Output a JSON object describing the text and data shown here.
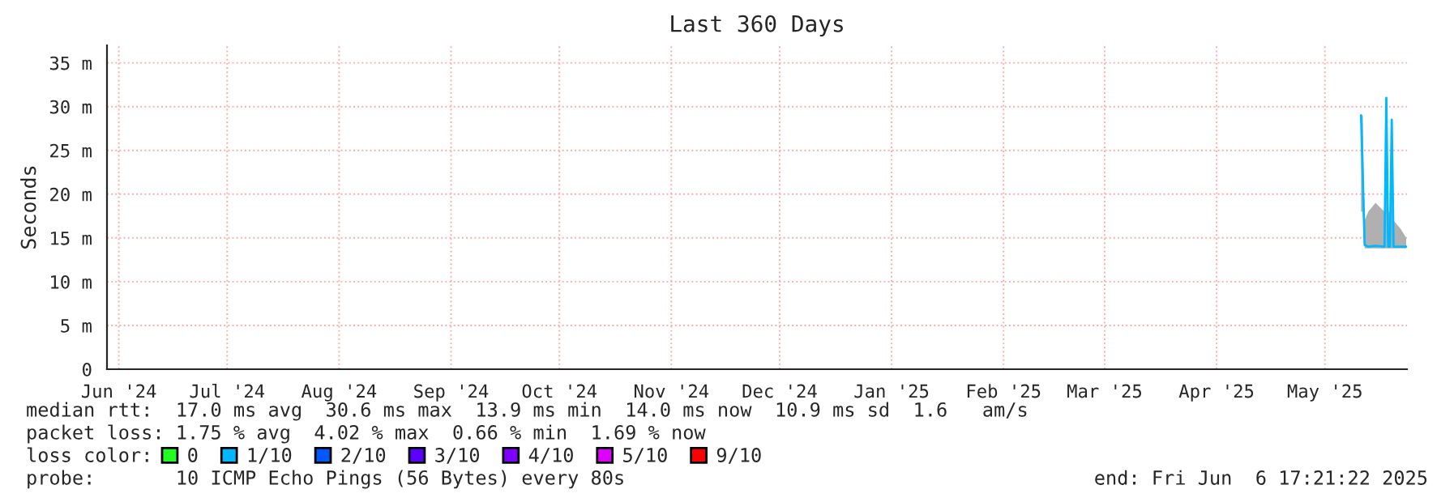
{
  "chart_data": {
    "type": "line",
    "title": "Last 360 Days",
    "ylabel": "Seconds",
    "xlim": [
      "2024-06-11T17:21",
      "2025-06-06T17:21"
    ],
    "xticks": [
      {
        "value": "2024-06-15",
        "label": "Jun '24"
      },
      {
        "value": "2024-07-15",
        "label": "Jul '24"
      },
      {
        "value": "2024-08-15",
        "label": "Aug '24"
      },
      {
        "value": "2024-09-15",
        "label": "Sep '24"
      },
      {
        "value": "2024-10-15",
        "label": "Oct '24"
      },
      {
        "value": "2024-11-15",
        "label": "Nov '24"
      },
      {
        "value": "2024-12-15",
        "label": "Dec '24"
      },
      {
        "value": "2025-01-15",
        "label": "Jan '25"
      },
      {
        "value": "2025-02-15",
        "label": "Feb '25"
      },
      {
        "value": "2025-03-15",
        "label": "Mar '25"
      },
      {
        "value": "2025-04-15",
        "label": "Apr '25"
      },
      {
        "value": "2025-05-15",
        "label": "May '25"
      }
    ],
    "ylim": [
      0,
      37
    ],
    "yticks": [
      0,
      {
        "value": 5,
        "label": "5 m"
      },
      {
        "value": 10,
        "label": "10 m"
      },
      {
        "value": 15,
        "label": "15 m"
      },
      {
        "value": 20,
        "label": "20 m"
      },
      {
        "value": 25,
        "label": "25 m"
      },
      {
        "value": 30,
        "label": "30 m"
      },
      {
        "value": 35,
        "label": "35 m"
      }
    ],
    "grid": true,
    "legend": "bottom",
    "legend_title": "loss color:",
    "marker": "none",
    "line_style": "solid",
    "x": [
      "2025-05-25T00:00",
      "2025-05-25T12:00",
      "2025-05-25T18:00",
      "2025-05-26T00:00",
      "2025-05-27T00:00",
      "2025-05-29T00:00",
      "2025-05-31T12:00",
      "2025-06-01T00:00",
      "2025-06-01T12:00",
      "2025-06-02T00:00",
      "2025-06-02T12:00",
      "2025-06-03T00:00",
      "2025-06-05T00:00",
      "2025-06-06T12:00"
    ],
    "series": [
      {
        "name": "0",
        "color": "#20ff20",
        "values": [
          null,
          null,
          null,
          null,
          null,
          null,
          null,
          null,
          null,
          null,
          null,
          null,
          null,
          null
        ]
      },
      {
        "name": "1/10",
        "color": "#00b8ff",
        "values": [
          29,
          21.7,
          18,
          14.2,
          14,
          14.1,
          14,
          31,
          14,
          14,
          28.5,
          14,
          14,
          14
        ],
        "lower": [
          18,
          18,
          15,
          13.8,
          13.8,
          13.8,
          13.8,
          13.8,
          13.8,
          13.8,
          13.8,
          13.8,
          13.8,
          13.8
        ],
        "upper": [
          29,
          29,
          22,
          17,
          18,
          19,
          18,
          31,
          18,
          18,
          28.5,
          17,
          16,
          15
        ]
      },
      {
        "name": "2/10",
        "color": "#0059ff",
        "values": [
          null,
          null,
          null,
          null,
          null,
          null,
          null,
          null,
          null,
          null,
          null,
          null,
          null,
          null
        ]
      },
      {
        "name": "3/10",
        "color": "#5e00ff",
        "values": [
          null,
          null,
          null,
          null,
          null,
          null,
          null,
          null,
          null,
          null,
          null,
          null,
          null,
          null
        ]
      },
      {
        "name": "4/10",
        "color": "#7e00ff",
        "values": [
          null,
          null,
          null,
          null,
          null,
          null,
          null,
          null,
          null,
          null,
          null,
          null,
          null,
          null
        ]
      },
      {
        "name": "5/10",
        "color": "#dd00ff",
        "values": [
          null,
          null,
          null,
          null,
          null,
          null,
          null,
          null,
          null,
          null,
          null,
          null,
          null,
          null
        ]
      },
      {
        "name": "9/10",
        "color": "#ff0000",
        "values": [
          null,
          null,
          null,
          null,
          null,
          null,
          null,
          null,
          null,
          null,
          null,
          null,
          null,
          null
        ]
      }
    ],
    "annotations": [
      "median rtt:  17.0 ms avg  30.6 ms max  13.9 ms min  14.0 ms now  10.9 ms sd  1.6   am/s",
      "packet loss: 1.75 % avg  4.02 % max  0.66 % min  1.69 % now",
      "probe:       10 ICMP Echo Pings (56 Bytes) every 80s",
      "end: Fri Jun  6 17:21:22 2025"
    ]
  }
}
